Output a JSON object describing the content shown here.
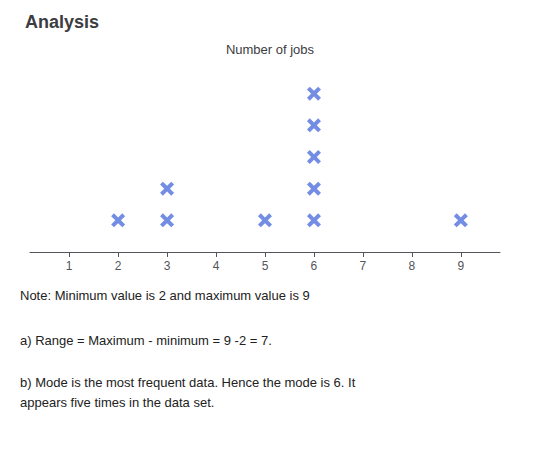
{
  "chart_data": {
    "type": "dot",
    "title": "Analysis",
    "subtitle": "Number of jobs",
    "x": [
      2,
      3,
      5,
      6,
      9
    ],
    "values": [
      1,
      2,
      1,
      5,
      1
    ],
    "xlim": [
      0.2,
      9.8
    ],
    "xticks": [
      1,
      2,
      3,
      4,
      5,
      6,
      7,
      8,
      9
    ],
    "ylim": [
      0,
      6
    ],
    "tick_labels": "x",
    "grid": false,
    "marker": "x",
    "annotations": [
      "Note: Minimum value is 2 and maximum value is 9",
      "a) Range = Maximum - minimum = 9 -2 = 7.",
      "b) Mode is the most frequent data. Hence the mode is 6. It\nappears five times in the data set."
    ]
  }
}
